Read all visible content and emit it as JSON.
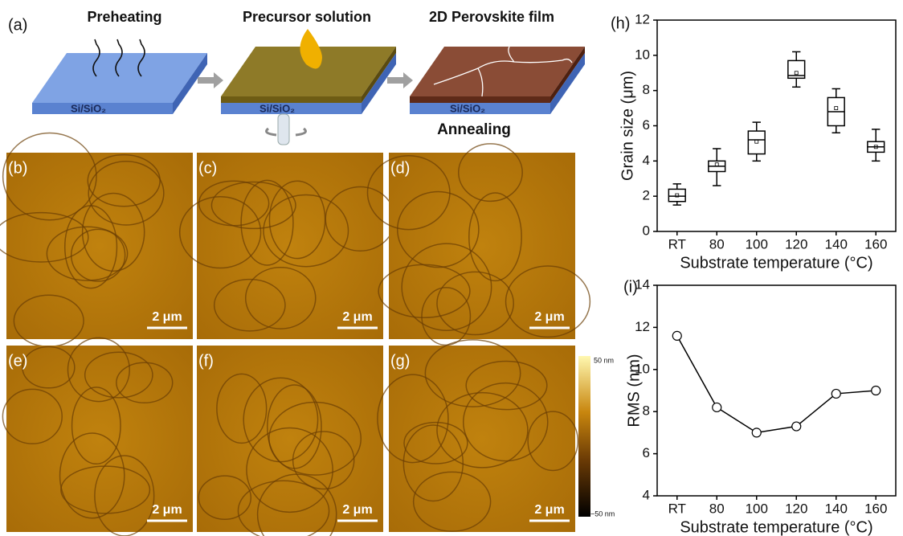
{
  "figure": {
    "schematic": {
      "label": "(a)",
      "steps": [
        {
          "title": "Preheating",
          "substrate": "Si/SiO₂"
        },
        {
          "title": "Precursor solution",
          "substrate": "Si/SiO₂"
        },
        {
          "title": "2D Perovskite film",
          "substrate": "Si/SiO₂"
        }
      ],
      "annealing": "Annealing"
    },
    "afm": {
      "panels": [
        {
          "label": "(b)",
          "scale_bar": "2 μm"
        },
        {
          "label": "(c)",
          "scale_bar": "2 μm"
        },
        {
          "label": "(d)",
          "scale_bar": "2 μm"
        },
        {
          "label": "(e)",
          "scale_bar": "2 μm"
        },
        {
          "label": "(f)",
          "scale_bar": "2 μm"
        },
        {
          "label": "(g)",
          "scale_bar": "2 μm"
        }
      ],
      "colorbar": {
        "max_label": "50 nm",
        "min_label": "−50 nm"
      }
    }
  },
  "chart_data": [
    {
      "type": "box",
      "panel_label": "(h)",
      "x_label": "Substrate temperature  (°C)",
      "y_label": "Grain size (μm)",
      "categories": [
        "RT",
        "80",
        "100",
        "120",
        "140",
        "160"
      ],
      "boxes": [
        {
          "min": 1.5,
          "q1": 1.7,
          "median": 2.0,
          "q3": 2.4,
          "max": 2.7,
          "mean": 2.05
        },
        {
          "min": 2.6,
          "q1": 3.4,
          "median": 3.7,
          "q3": 4.0,
          "max": 4.7,
          "mean": 3.8
        },
        {
          "min": 4.0,
          "q1": 4.4,
          "median": 5.2,
          "q3": 5.7,
          "max": 6.2,
          "mean": 5.1
        },
        {
          "min": 8.2,
          "q1": 8.7,
          "median": 8.85,
          "q3": 9.7,
          "max": 10.2,
          "mean": 9.0
        },
        {
          "min": 5.6,
          "q1": 6.0,
          "median": 6.8,
          "q3": 7.6,
          "max": 8.1,
          "mean": 7.0
        },
        {
          "min": 4.0,
          "q1": 4.5,
          "median": 4.8,
          "q3": 5.1,
          "max": 5.8,
          "mean": 4.8
        }
      ],
      "color": "#000000",
      "ylim": [
        0,
        12
      ],
      "yticks": [
        0,
        2,
        4,
        6,
        8,
        10,
        12
      ]
    },
    {
      "type": "line",
      "panel_label": "(i)",
      "x_label": "Substrate temperature  (°C)",
      "y_label": "RMS (nm)",
      "categories": [
        "RT",
        "80",
        "100",
        "120",
        "140",
        "160"
      ],
      "values": [
        11.6,
        8.2,
        7.0,
        7.3,
        8.85,
        9.0
      ],
      "color": "#000000",
      "ylim": [
        4,
        14
      ],
      "yticks": [
        4,
        6,
        8,
        10,
        12,
        14
      ]
    }
  ]
}
